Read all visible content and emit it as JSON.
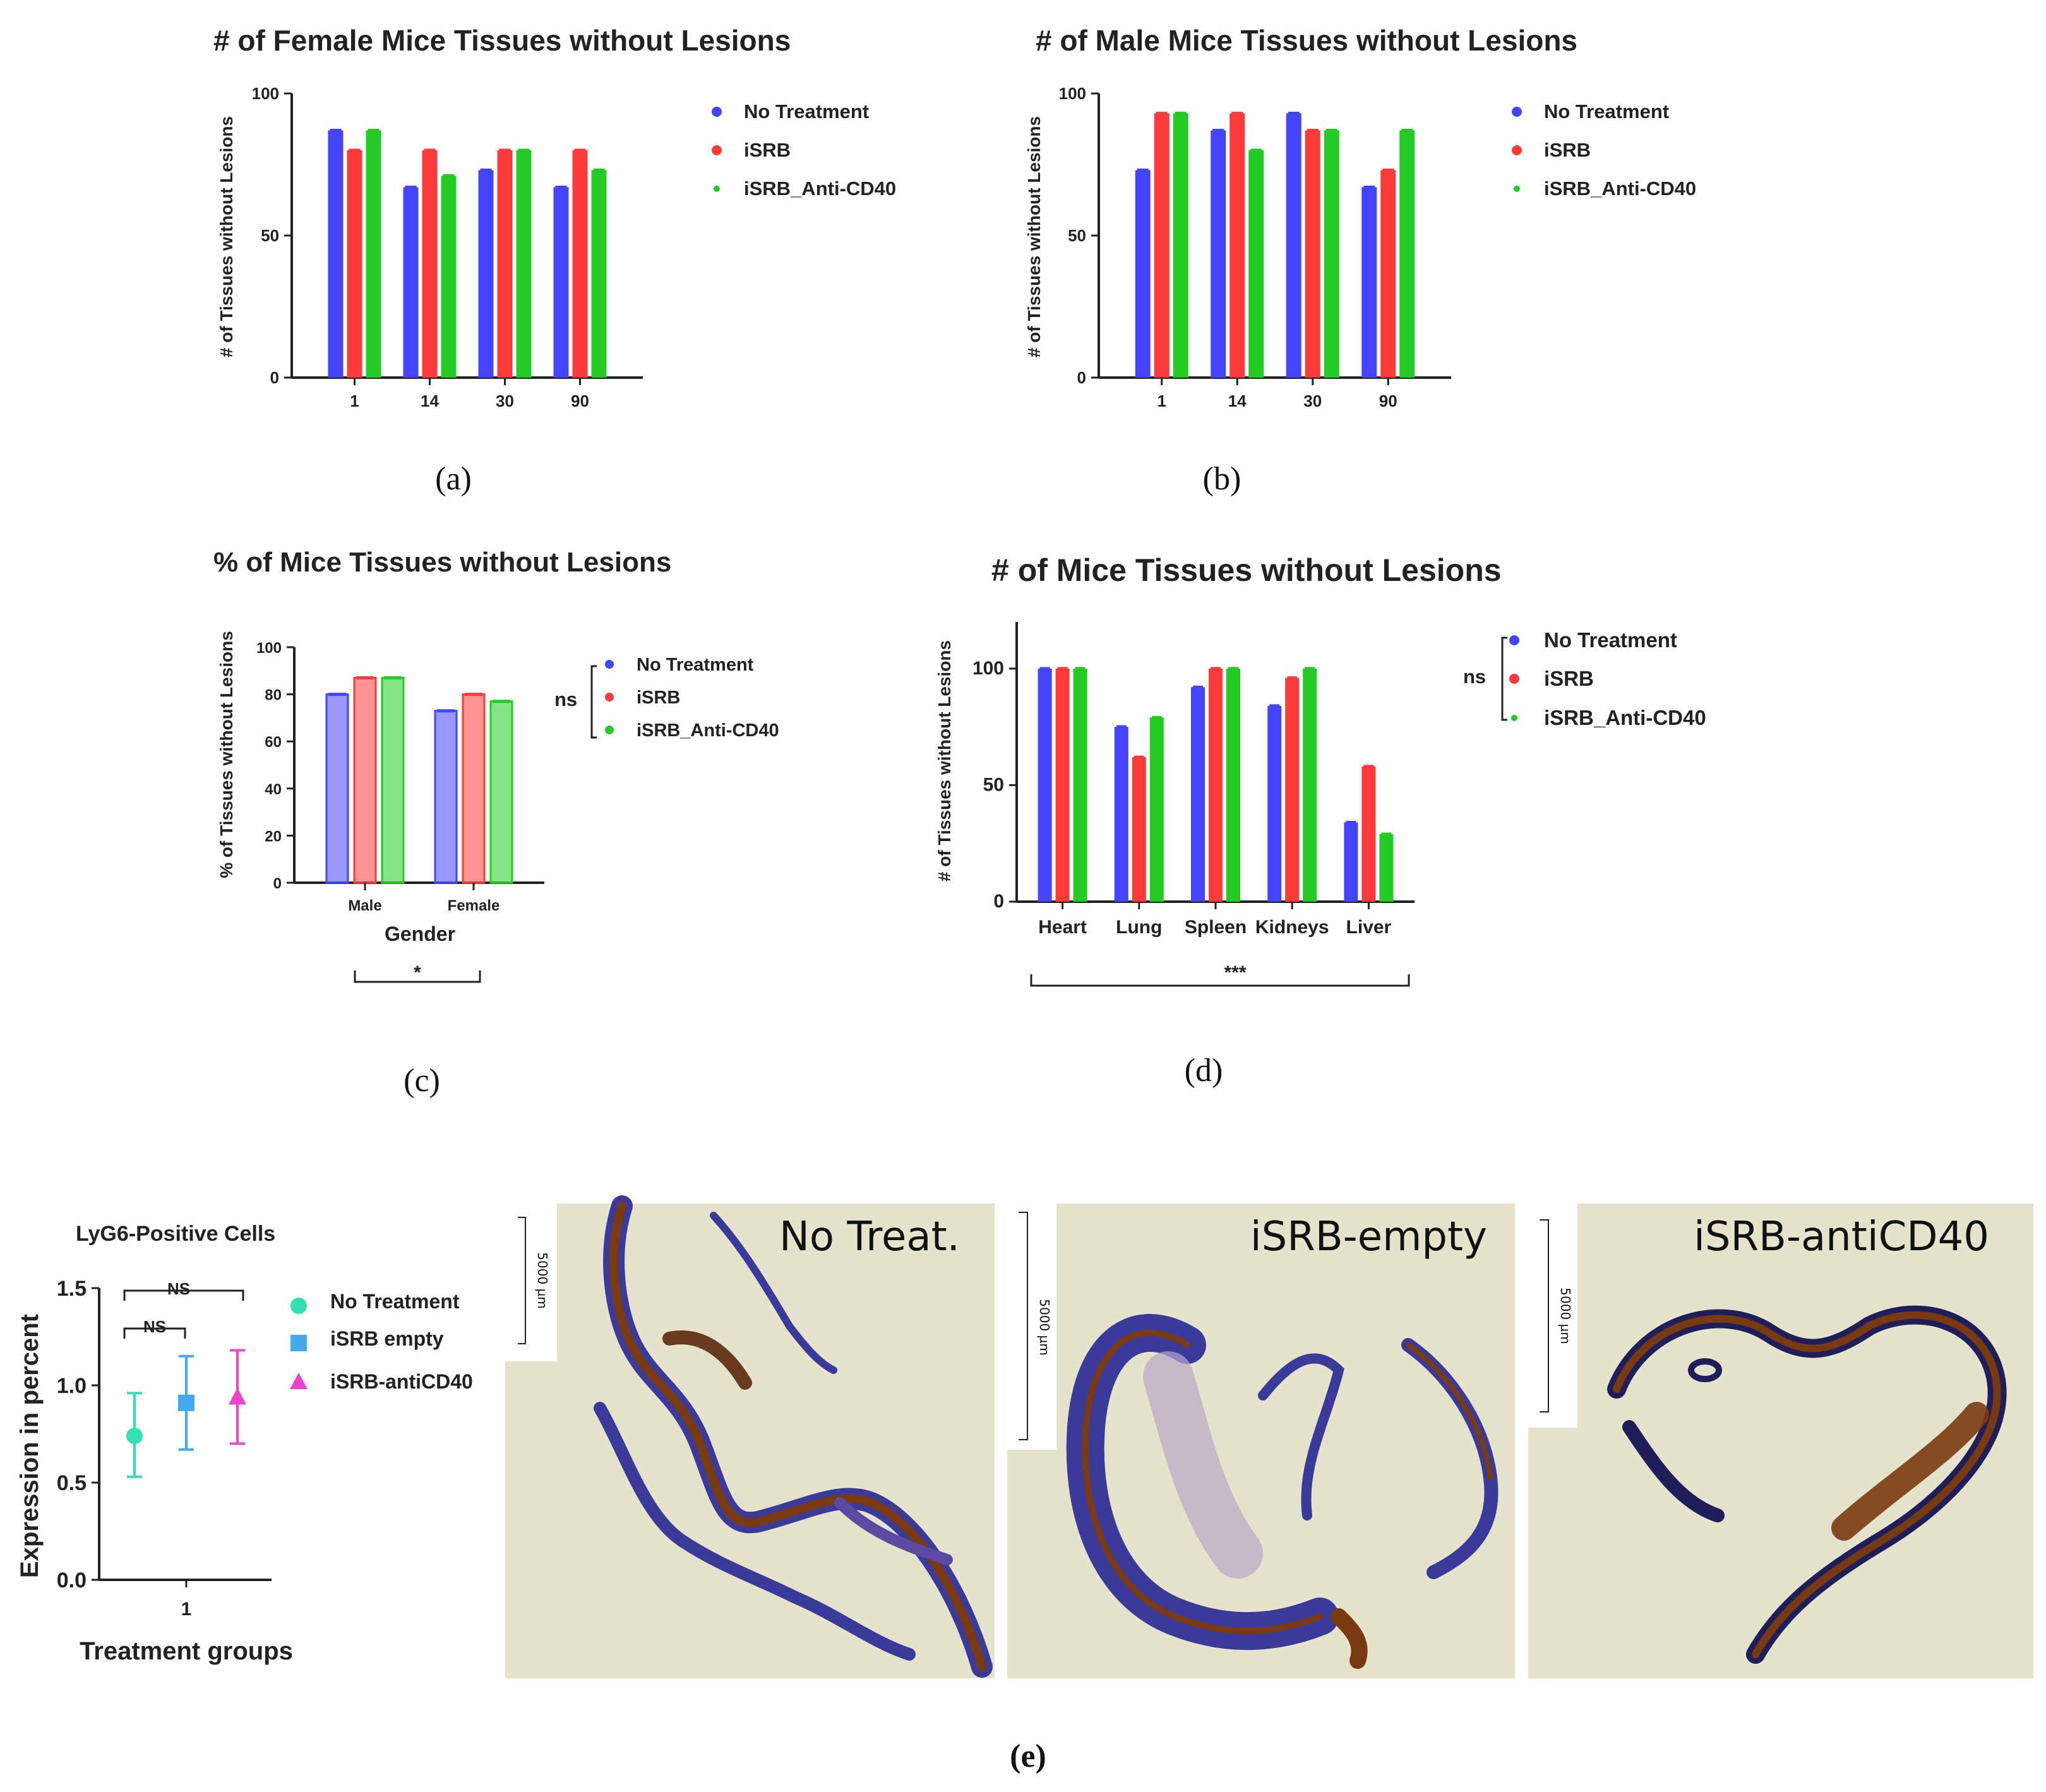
{
  "colors": {
    "blue": "#4444ff",
    "red": "#ff3a3a",
    "green": "#22cc22",
    "teal": "#33e0b0",
    "lightblue": "#44aaee",
    "magenta": "#ee44cc",
    "photo_bg": "#e6e3cc",
    "tissue_blue": "#3a3a9a",
    "tissue_brown": "#7a3a10"
  },
  "chart_data": [
    {
      "id": "a",
      "panel_label": "(a)",
      "type": "bar",
      "title": "# of Female Mice Tissues without Lesions",
      "ylabel": "# of Tissues without Lesions",
      "xlabel": "",
      "ylim": [
        0,
        100
      ],
      "yticks": [
        "0",
        "50",
        "100"
      ],
      "categories": [
        "1",
        "14",
        "30",
        "90"
      ],
      "series": [
        {
          "name": "No Treatment",
          "values": [
            87,
            67,
            73,
            67
          ]
        },
        {
          "name": "iSRB",
          "values": [
            80,
            80,
            80,
            80
          ]
        },
        {
          "name": "iSRB_Anti-CD40",
          "values": [
            87,
            71,
            80,
            73
          ]
        }
      ],
      "legend": "right"
    },
    {
      "id": "b",
      "panel_label": "(b)",
      "type": "bar",
      "title": "# of Male Mice Tissues without Lesions",
      "ylabel": "# of Tissues without Lesions",
      "xlabel": "",
      "ylim": [
        0,
        100
      ],
      "yticks": [
        "0",
        "50",
        "100"
      ],
      "categories": [
        "1",
        "14",
        "30",
        "90"
      ],
      "series": [
        {
          "name": "No Treatment",
          "values": [
            73,
            87,
            93,
            67
          ]
        },
        {
          "name": "iSRB",
          "values": [
            93,
            93,
            87,
            73
          ]
        },
        {
          "name": "iSRB_Anti-CD40",
          "values": [
            93,
            80,
            87,
            87
          ]
        }
      ],
      "legend": "right"
    },
    {
      "id": "c",
      "panel_label": "(c)",
      "type": "bar",
      "title": "% of Mice Tissues without Lesions",
      "ylabel": "% of Tissues without Lesions",
      "xlabel": "Gender",
      "ylim": [
        0,
        100
      ],
      "yticks": [
        "0",
        "20",
        "40",
        "60",
        "80",
        "100"
      ],
      "categories": [
        "Male",
        "Female"
      ],
      "series": [
        {
          "name": "No Treatment",
          "values": [
            80,
            73
          ]
        },
        {
          "name": "iSRB",
          "values": [
            87,
            80
          ]
        },
        {
          "name": "iSRB_Anti-CD40",
          "values": [
            87,
            77
          ]
        }
      ],
      "legend_annotation": "ns",
      "bottom_annotation": "*",
      "legend": "right"
    },
    {
      "id": "d",
      "panel_label": "(d)",
      "type": "bar",
      "title": "# of Mice Tissues without Lesions",
      "ylabel": "# of Tissues without Lesions",
      "xlabel": "",
      "ylim": [
        0,
        120
      ],
      "yticks": [
        "0",
        "50",
        "100"
      ],
      "categories": [
        "Heart",
        "Lung",
        "Spleen",
        "Kidneys",
        "Liver"
      ],
      "series": [
        {
          "name": "No Treatment",
          "values": [
            100,
            75,
            92,
            84,
            34
          ]
        },
        {
          "name": "iSRB",
          "values": [
            100,
            62,
            100,
            96,
            58
          ]
        },
        {
          "name": "iSRB_Anti-CD40",
          "values": [
            100,
            79,
            100,
            100,
            29
          ]
        }
      ],
      "legend_annotation": "ns",
      "bottom_annotation": "***",
      "legend": "right"
    },
    {
      "id": "e",
      "panel_label": "(e)",
      "type": "scatter",
      "title": "LyG6-Positive Cells",
      "ylabel": "Expression in percent",
      "xlabel": "Treatment groups",
      "ylim": [
        0,
        1.5
      ],
      "yticks": [
        "0.0",
        "0.5",
        "1.0",
        "1.5"
      ],
      "categories": [
        "1"
      ],
      "series": [
        {
          "name": "No Treatment",
          "marker": "circle",
          "mean": 0.74,
          "low": 0.53,
          "high": 0.96
        },
        {
          "name": "iSRB empty",
          "marker": "square",
          "mean": 0.91,
          "low": 0.67,
          "high": 1.15
        },
        {
          "name": "iSRB-antiCD40",
          "marker": "triangle",
          "mean": 0.94,
          "low": 0.7,
          "high": 1.18
        }
      ],
      "significance": [
        "NS",
        "NS"
      ],
      "legend": "right"
    }
  ],
  "photos": [
    {
      "label": "No Treat.",
      "scale": "5000 µm"
    },
    {
      "label": "iSRB-empty",
      "scale": "5000 µm"
    },
    {
      "label": "iSRB-antiCD40",
      "scale": "5000 µm"
    }
  ]
}
